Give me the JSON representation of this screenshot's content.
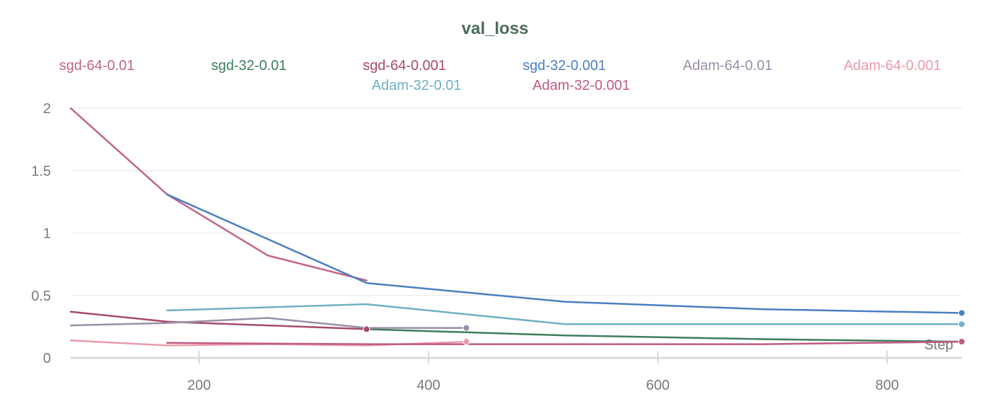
{
  "chart_data": {
    "type": "line",
    "title": "val_loss",
    "xlabel": "Step",
    "ylabel": "",
    "xlim": [
      88,
      865
    ],
    "ylim": [
      0,
      2
    ],
    "xticks": [
      200,
      400,
      600,
      800
    ],
    "yticks": [
      0,
      0.5,
      1,
      1.5,
      2
    ],
    "grid": true,
    "legend_placement": "top",
    "colors": {
      "title": "#4a6e55",
      "grid": "#e6e6e6",
      "axis": "#d9d9d9",
      "tick_label": "#7a7a7a"
    },
    "series": [
      {
        "name": "sgd-64-0.01",
        "color": "#c2648a",
        "marker_end": false,
        "points": [
          [
            88,
            2.0
          ],
          [
            172,
            1.31
          ],
          [
            260,
            0.82
          ],
          [
            346,
            0.62
          ]
        ]
      },
      {
        "name": "sgd-32-0.01",
        "color": "#3d7d5c",
        "marker_end": false,
        "points": [
          [
            346,
            0.23
          ],
          [
            519,
            0.18
          ],
          [
            692,
            0.15
          ],
          [
            865,
            0.13
          ]
        ]
      },
      {
        "name": "sgd-64-0.001",
        "color": "#a64a6e",
        "marker_end": true,
        "points": [
          [
            88,
            0.37
          ],
          [
            172,
            0.29
          ],
          [
            260,
            0.26
          ],
          [
            346,
            0.23
          ]
        ]
      },
      {
        "name": "sgd-32-0.001",
        "color": "#4a7fc1",
        "marker_end": true,
        "points": [
          [
            172,
            1.31
          ],
          [
            346,
            0.6
          ],
          [
            519,
            0.45
          ],
          [
            692,
            0.39
          ],
          [
            865,
            0.36
          ]
        ]
      },
      {
        "name": "Adam-64-0.01",
        "color": "#9b8fa8",
        "marker_end": true,
        "points": [
          [
            88,
            0.26
          ],
          [
            172,
            0.28
          ],
          [
            260,
            0.32
          ],
          [
            346,
            0.24
          ],
          [
            433,
            0.24
          ]
        ]
      },
      {
        "name": "Adam-64-0.001",
        "color": "#e89bab",
        "marker_end": true,
        "points": [
          [
            88,
            0.14
          ],
          [
            172,
            0.1
          ],
          [
            260,
            0.11
          ],
          [
            346,
            0.1
          ],
          [
            433,
            0.13
          ]
        ]
      },
      {
        "name": "Adam-32-0.01",
        "color": "#6fb0c4",
        "marker_end": true,
        "points": [
          [
            172,
            0.38
          ],
          [
            346,
            0.43
          ],
          [
            519,
            0.27
          ],
          [
            692,
            0.27
          ],
          [
            865,
            0.27
          ]
        ]
      },
      {
        "name": "Adam-32-0.001",
        "color": "#c05a85",
        "marker_end": true,
        "points": [
          [
            172,
            0.12
          ],
          [
            346,
            0.11
          ],
          [
            519,
            0.11
          ],
          [
            692,
            0.11
          ],
          [
            865,
            0.13
          ]
        ]
      }
    ]
  }
}
